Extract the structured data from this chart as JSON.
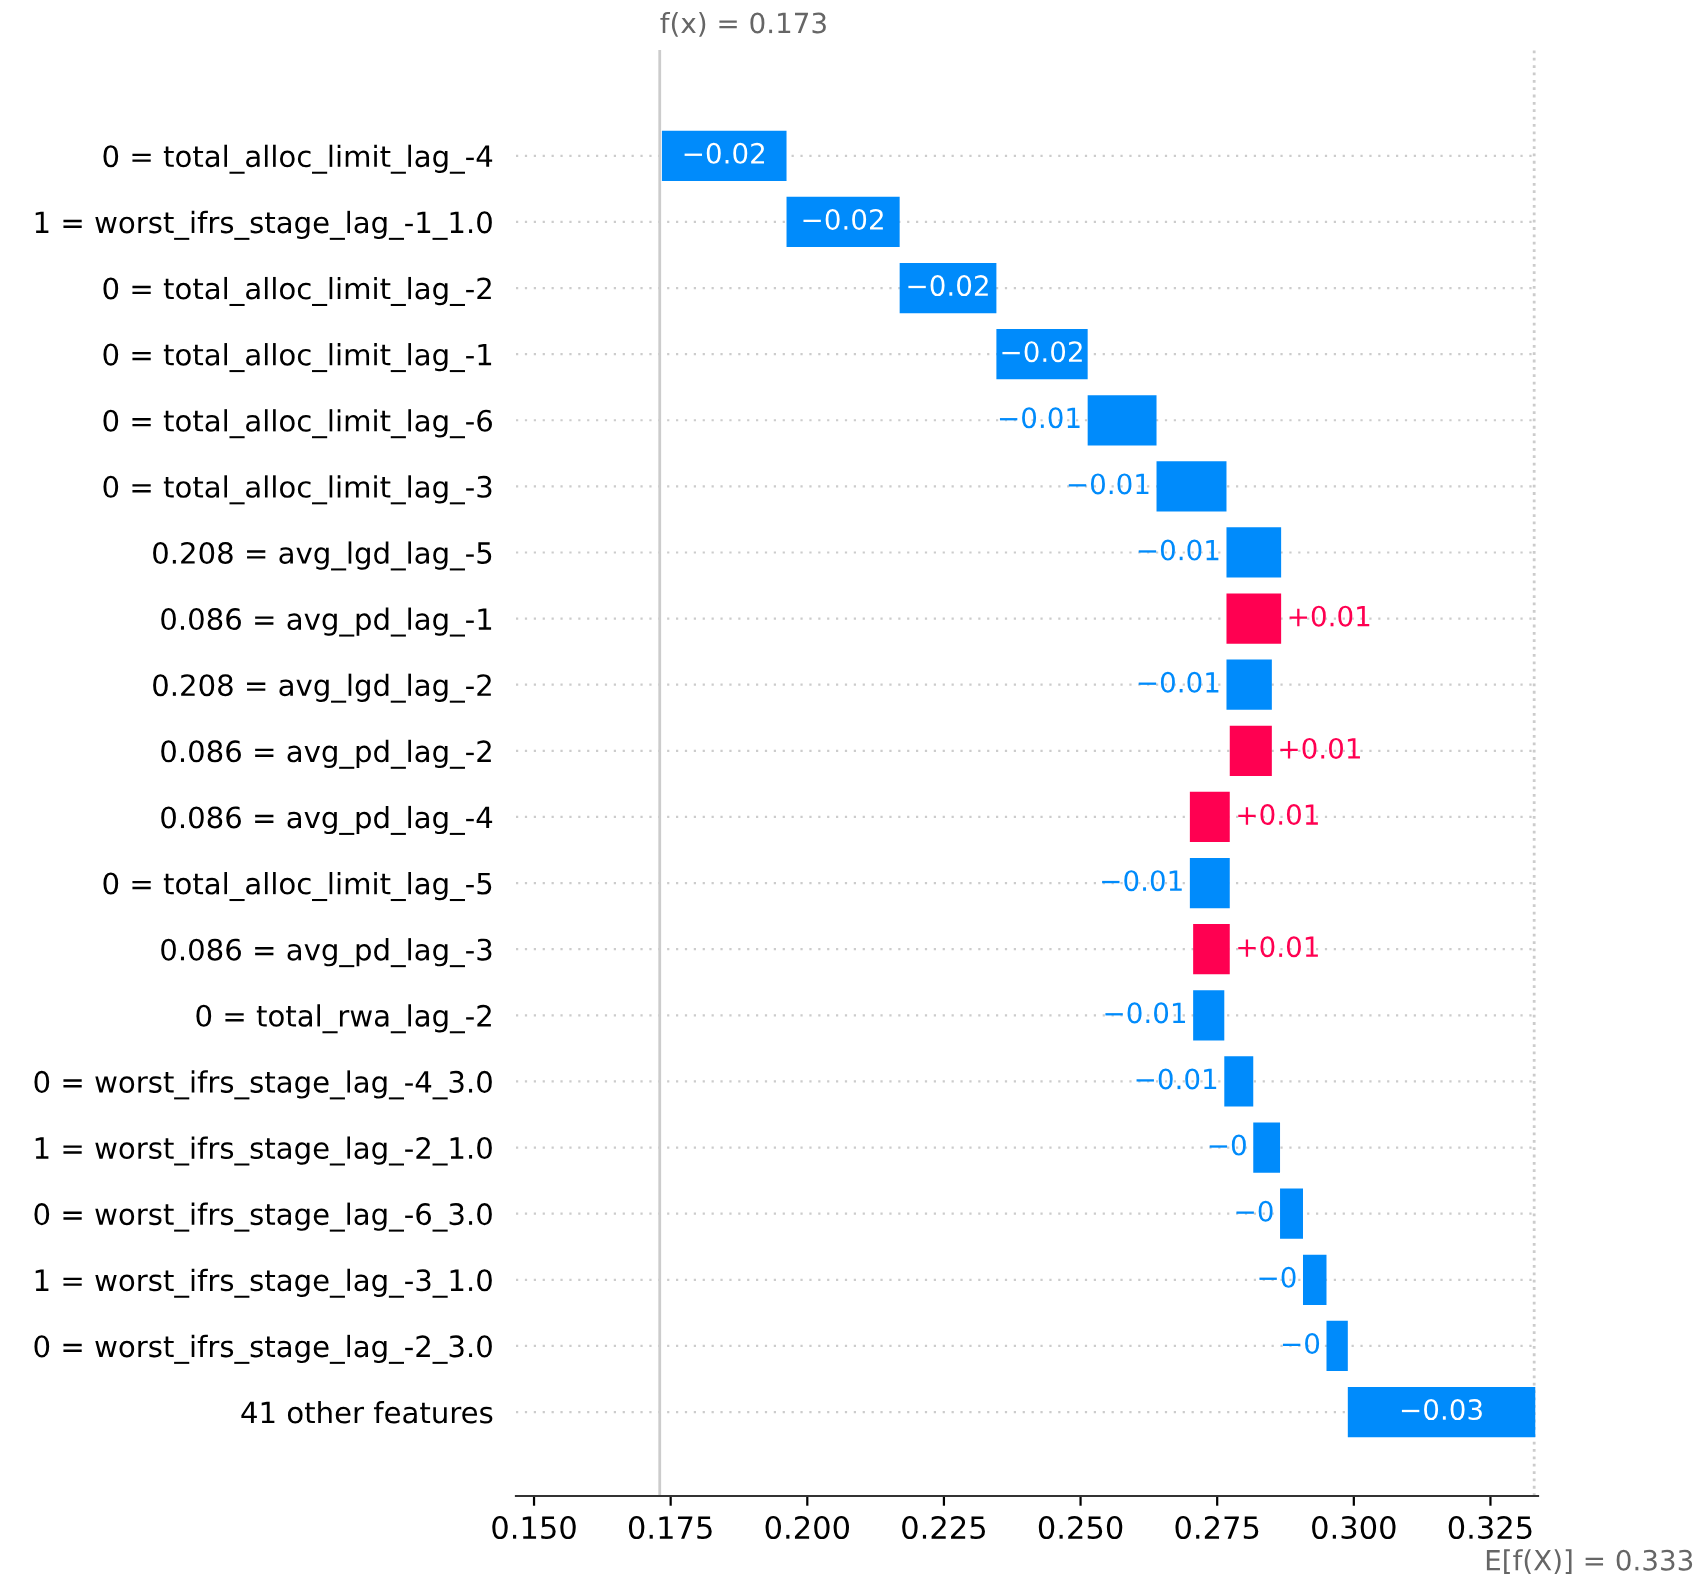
{
  "chart_data": {
    "type": "bar",
    "orientation": "horizontal",
    "categories": [
      "0 = total_alloc_limit_lag_-4",
      "1 = worst_ifrs_stage_lag_-1_1.0",
      "0 = total_alloc_limit_lag_-2",
      "0 = total_alloc_limit_lag_-1",
      "0 = total_alloc_limit_lag_-6",
      "0 = total_alloc_limit_lag_-3",
      "0.208 = avg_lgd_lag_-5",
      "0.086 = avg_pd_lag_-1",
      "0.208 = avg_lgd_lag_-2",
      "0.086 = avg_pd_lag_-2",
      "0.086 = avg_pd_lag_-4",
      "0 = total_alloc_limit_lag_-5",
      "0.086 = avg_pd_lag_-3",
      "0 = total_rwa_lag_-2",
      "0 = worst_ifrs_stage_lag_-4_3.0",
      "1 = worst_ifrs_stage_lag_-2_1.0",
      "0 = worst_ifrs_stage_lag_-6_3.0",
      "1 = worst_ifrs_stage_lag_-3_1.0",
      "0 = worst_ifrs_stage_lag_-2_3.0",
      "41 other features"
    ],
    "base": [
      0.1962,
      0.2169,
      0.2346,
      0.2513,
      0.2639,
      0.2767,
      0.2867,
      0.2767,
      0.285,
      0.2773,
      0.27,
      0.2773,
      0.2706,
      0.2763,
      0.2816,
      0.2865,
      0.2907,
      0.295,
      0.2989,
      0.3332
    ],
    "values": [
      -0.0228,
      -0.0207,
      -0.0177,
      -0.0167,
      -0.0126,
      -0.0128,
      -0.01,
      0.01,
      -0.0083,
      0.0077,
      0.0073,
      -0.0073,
      0.0067,
      -0.0057,
      -0.0053,
      -0.0049,
      -0.0042,
      -0.0043,
      -0.0039,
      -0.0343
    ],
    "value_labels": [
      "−0.02",
      "−0.02",
      "−0.02",
      "−0.02",
      "−0.01",
      "−0.01",
      "−0.01",
      "+0.01",
      "−0.01",
      "+0.01",
      "+0.01",
      "−0.01",
      "+0.01",
      "−0.01",
      "−0.01",
      "−0",
      "−0",
      "−0",
      "−0",
      "−0.03"
    ],
    "colors": [
      "#008bfb",
      "#008bfb",
      "#008bfb",
      "#008bfb",
      "#008bfb",
      "#008bfb",
      "#008bfb",
      "#ff0051",
      "#008bfb",
      "#ff0051",
      "#ff0051",
      "#008bfb",
      "#ff0051",
      "#008bfb",
      "#008bfb",
      "#008bfb",
      "#008bfb",
      "#008bfb",
      "#008bfb",
      "#008bfb"
    ],
    "xlim": [
      0.1467,
      0.3337
    ],
    "xticks": [
      {
        "value": 0.15,
        "label": "0.150"
      },
      {
        "value": 0.175,
        "label": "0.175"
      },
      {
        "value": 0.2,
        "label": "0.200"
      },
      {
        "value": 0.225,
        "label": "0.225"
      },
      {
        "value": 0.25,
        "label": "0.250"
      },
      {
        "value": 0.275,
        "label": "0.275"
      },
      {
        "value": 0.3,
        "label": "0.300"
      },
      {
        "value": 0.325,
        "label": "0.325"
      }
    ],
    "ref_lines": [
      {
        "axis": "x",
        "value": 0.173,
        "label": "f(x) = 0.173",
        "color": "#cccccc",
        "line_style": "solid"
      },
      {
        "axis": "x",
        "value": 0.333,
        "label": "E[f(X)] = 0.333",
        "color": "#cccccc",
        "line_style": "dotted"
      }
    ],
    "grid": "y"
  }
}
